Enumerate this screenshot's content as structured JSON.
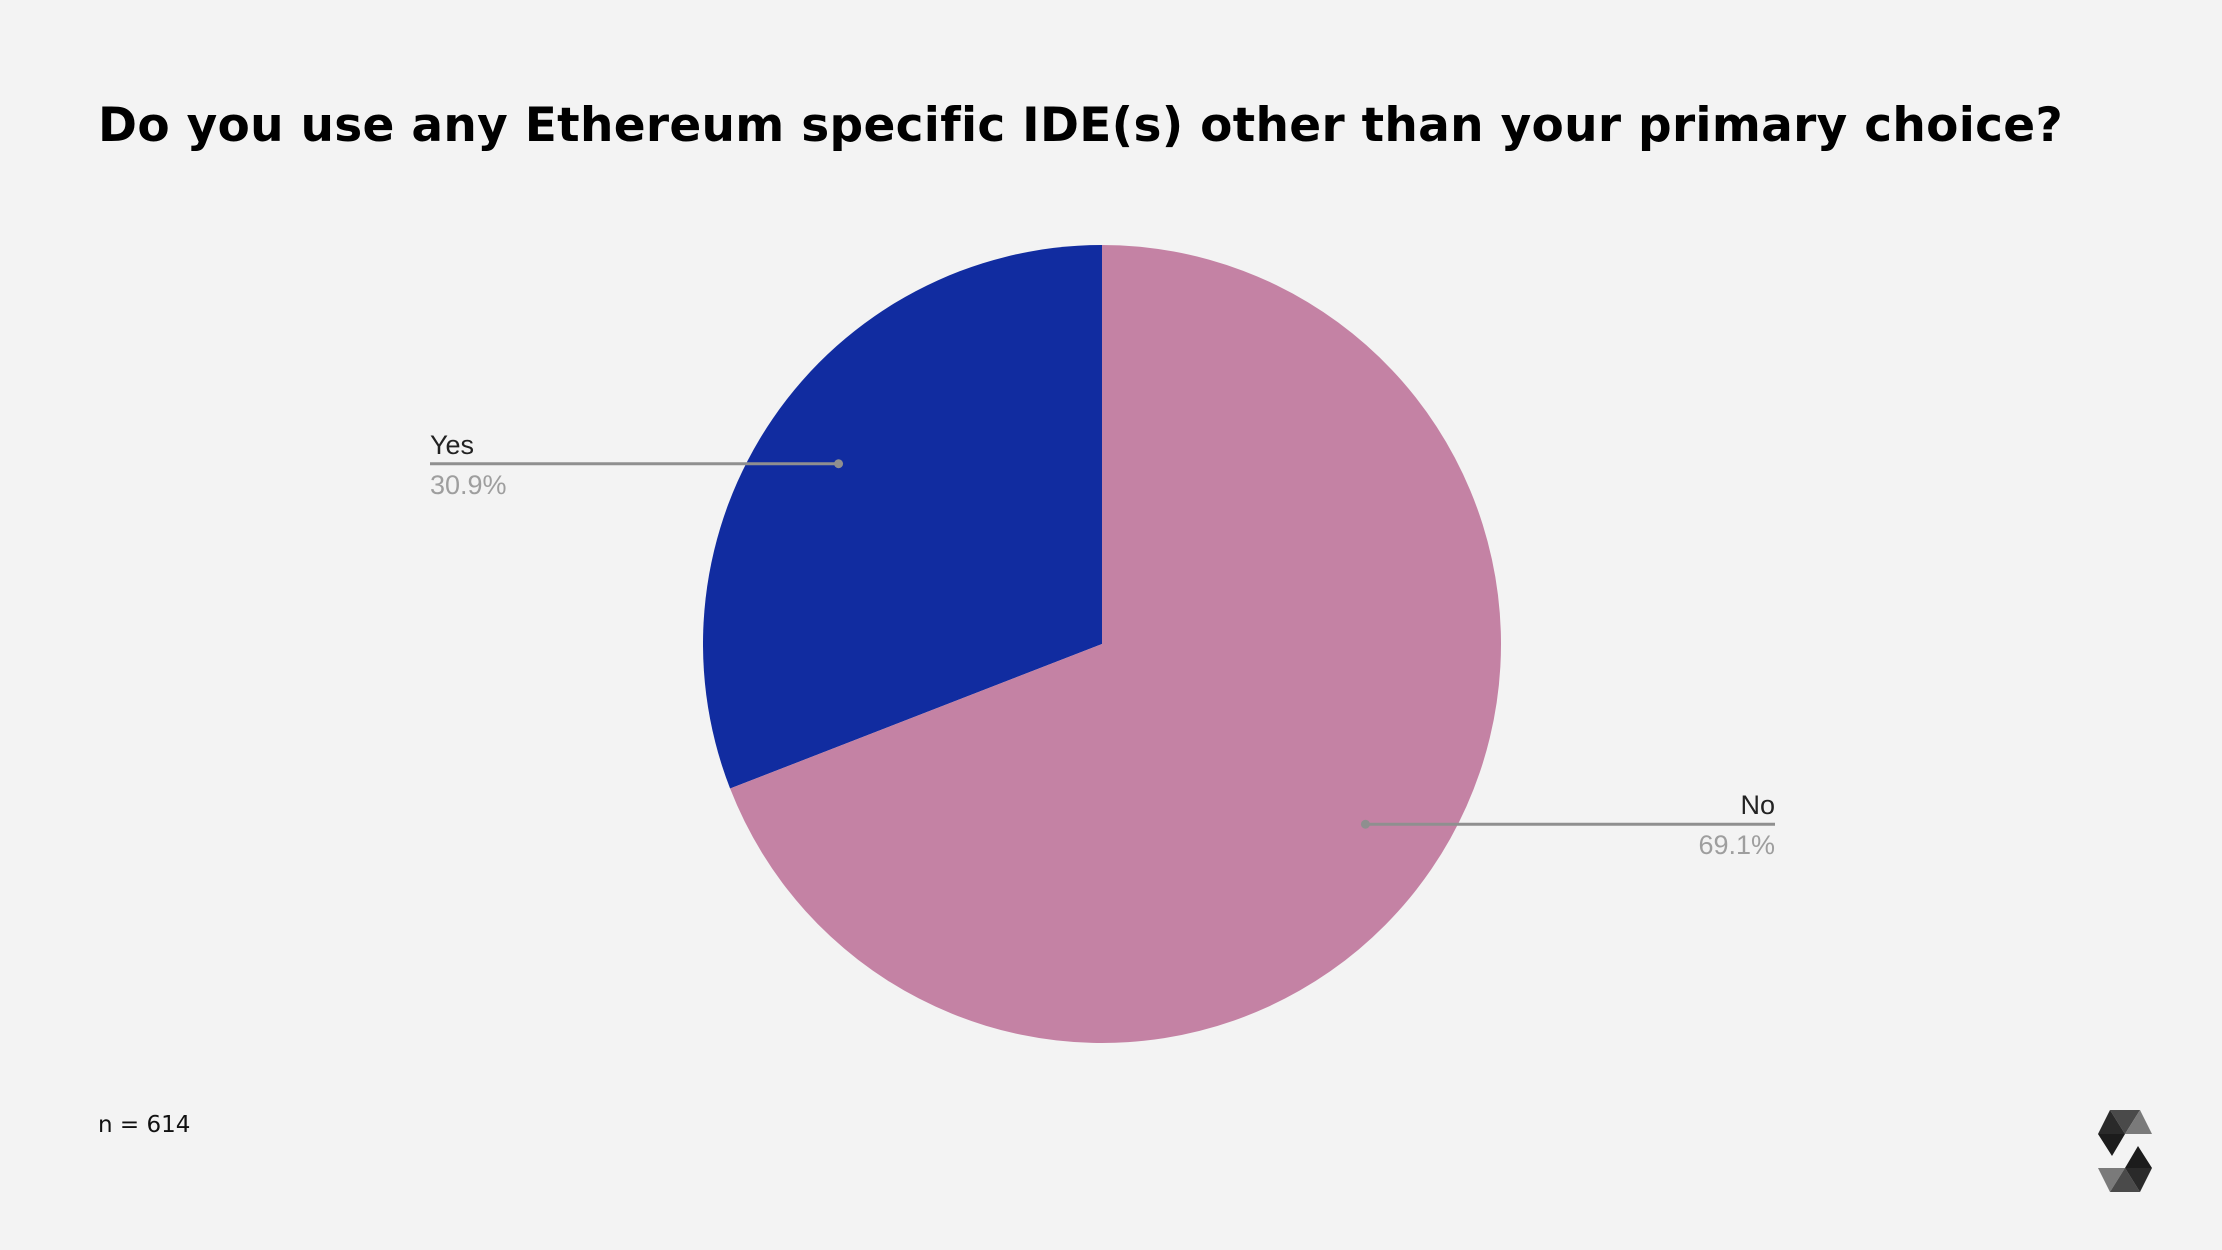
{
  "page": {
    "title": "Do you use any Ethereum specific IDE(s) other than your primary choice?",
    "sample_size": "n = 614"
  },
  "logo": {
    "icon": "solidity-logo-icon"
  },
  "chart_data": {
    "type": "pie",
    "title": "",
    "slices": [
      {
        "label": "Yes",
        "value": 30.9,
        "display": "30.9%",
        "color": "#112ca0"
      },
      {
        "label": "No",
        "value": 69.1,
        "display": "69.1%",
        "color": "#c482a4"
      }
    ],
    "start_angle_deg": 0,
    "direction": "counterclockwise",
    "label_style": "leader-lines",
    "label_color": "#222222",
    "value_color": "#9e9e9e",
    "line_color": "#8f8f8f"
  }
}
